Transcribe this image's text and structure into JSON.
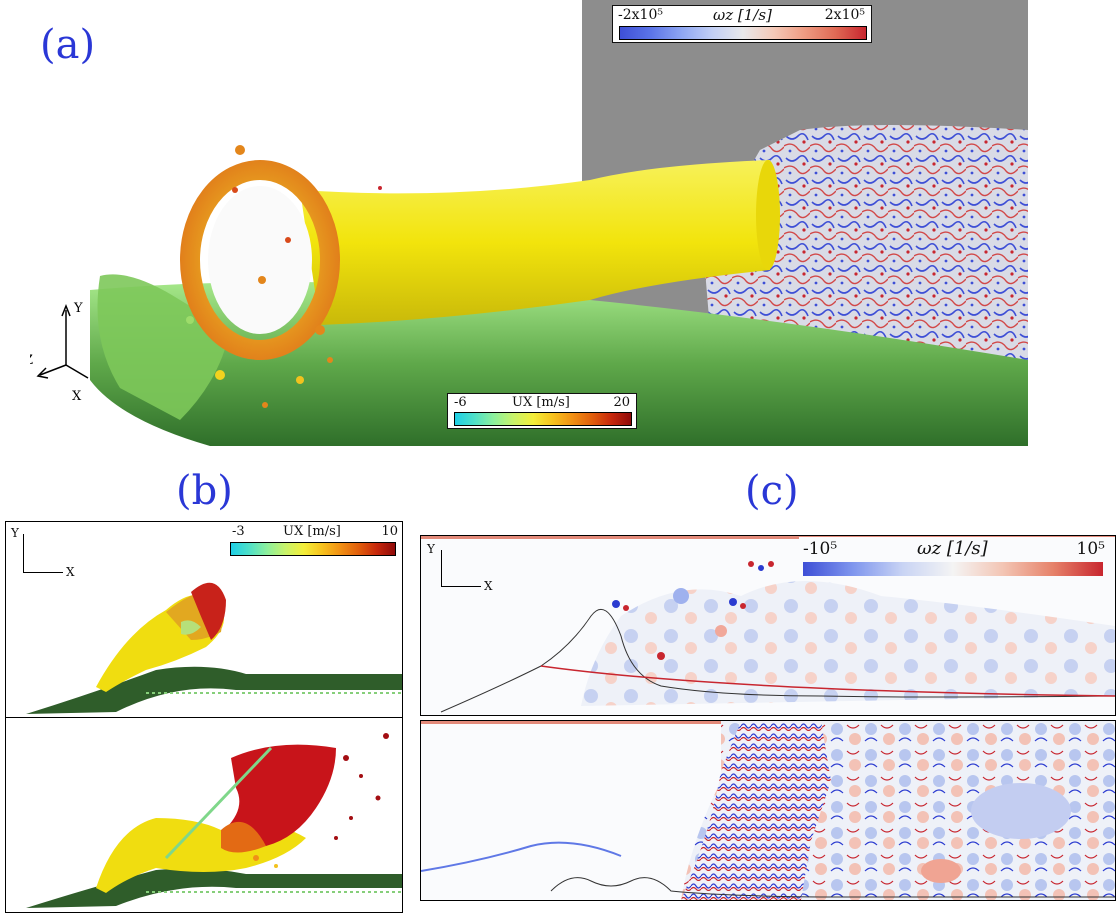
{
  "panels": {
    "a": {
      "label": "(a)"
    },
    "b": {
      "label": "(b)"
    },
    "c": {
      "label": "(c)"
    }
  },
  "colorbars": {
    "a_vort": {
      "min": "-2x10⁵",
      "max": "2x10⁵",
      "title": "ωz [1/s]",
      "colors": [
        "#3e4fd6",
        "#5b74e8",
        "#8ea6f2",
        "#c2cff5",
        "#e8e8ea",
        "#f4c9b8",
        "#ee9b82",
        "#e06a55",
        "#c8262f"
      ]
    },
    "a_ux": {
      "min": "-6",
      "max": "20",
      "title": "UX [m/s]",
      "colors": [
        "#1ecfe6",
        "#4fe0c8",
        "#8ef09c",
        "#c9f36a",
        "#f3ee3a",
        "#f7c21e",
        "#f19014",
        "#e15f0c",
        "#c7280c",
        "#8f0a0a"
      ]
    },
    "b_ux": {
      "min": "-3",
      "max": "10",
      "title": "UX [m/s]",
      "colors": [
        "#1ecfe6",
        "#4fe0c8",
        "#8ef09c",
        "#c9f36a",
        "#f3ee3a",
        "#f7c21e",
        "#f19014",
        "#e15f0c",
        "#c7280c",
        "#8f0a0a"
      ]
    },
    "c_vort": {
      "min": "-10⁵",
      "max": "10⁵",
      "title": "ωz [1/s]",
      "colors": [
        "#3e4fd6",
        "#7f96ee",
        "#c9d4f4",
        "#f4f4f4",
        "#f3c5b4",
        "#e6826a",
        "#c8262f"
      ]
    }
  },
  "axes": {
    "a": {
      "y": "Y",
      "z": "Z",
      "x": "X"
    },
    "b": {
      "y": "Y",
      "x": "X"
    },
    "c": {
      "y": "Y",
      "x": "X"
    }
  },
  "colors": {
    "label_blue": "#2a37d6",
    "jet_yellow": "#f4ec12",
    "film_green": "#3f8a34",
    "wall_gray": "#8d8d8d"
  }
}
